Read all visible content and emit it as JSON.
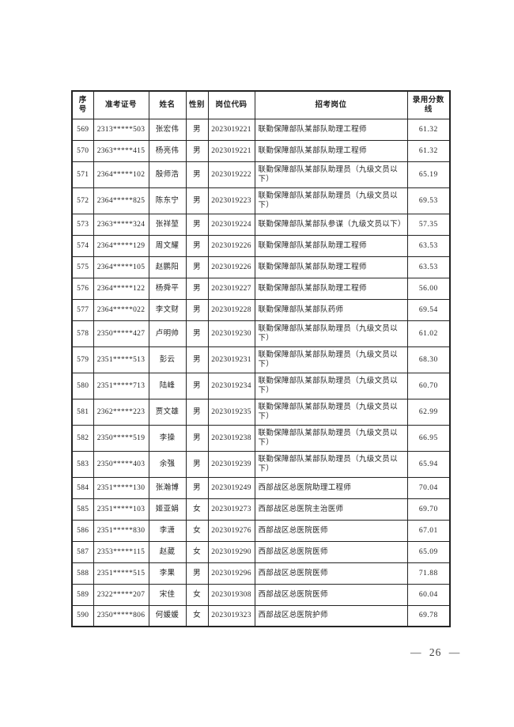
{
  "page": {
    "footer_text": "— 26 —"
  },
  "table": {
    "headers": [
      "序号",
      "准考证号",
      "姓名",
      "性别",
      "岗位代码",
      "招考岗位",
      "录用分数线"
    ],
    "rows": [
      [
        "569",
        "2313*****503",
        "张宏伟",
        "男",
        "2023019221",
        "联勤保障部队某部队助理工程师",
        "61.32"
      ],
      [
        "570",
        "2363*****415",
        "杨亮伟",
        "男",
        "2023019221",
        "联勤保障部队某部队助理工程师",
        "61.32"
      ],
      [
        "571",
        "2364*****102",
        "殷师浩",
        "男",
        "2023019222",
        "联勤保障部队某部队助理员（九级文员以下）",
        "65.19"
      ],
      [
        "572",
        "2364*****825",
        "陈东宁",
        "男",
        "2023019223",
        "联勤保障部队某部队助理员（九级文员以下）",
        "69.53"
      ],
      [
        "573",
        "2363*****324",
        "张祥堃",
        "男",
        "2023019224",
        "联勤保障部队某部队参谋（九级文员以下）",
        "57.35"
      ],
      [
        "574",
        "2364*****129",
        "周文耀",
        "男",
        "2023019226",
        "联勤保障部队某部队助理工程师",
        "63.53"
      ],
      [
        "575",
        "2364*****105",
        "赵鹏阳",
        "男",
        "2023019226",
        "联勤保障部队某部队助理工程师",
        "63.53"
      ],
      [
        "576",
        "2364*****122",
        "杨舜平",
        "男",
        "2023019227",
        "联勤保障部队某部队助理工程师",
        "56.00"
      ],
      [
        "577",
        "2364*****022",
        "李文财",
        "男",
        "2023019228",
        "联勤保障部队某部队药师",
        "69.54"
      ],
      [
        "578",
        "2350*****427",
        "卢明帅",
        "男",
        "2023019230",
        "联勤保障部队某部队助理员（九级文员以下）",
        "61.02"
      ],
      [
        "579",
        "2351*****513",
        "彭云",
        "男",
        "2023019231",
        "联勤保障部队某部队助理员（九级文员以下）",
        "68.30"
      ],
      [
        "580",
        "2351*****713",
        "陆峰",
        "男",
        "2023019234",
        "联勤保障部队某部队助理员（九级文员以下）",
        "60.70"
      ],
      [
        "581",
        "2362*****223",
        "贾文雄",
        "男",
        "2023019235",
        "联勤保障部队某部队助理员（九级文员以下）",
        "62.99"
      ],
      [
        "582",
        "2350*****519",
        "李操",
        "男",
        "2023019238",
        "联勤保障部队某部队助理员（九级文员以下）",
        "66.95"
      ],
      [
        "583",
        "2350*****403",
        "余强",
        "男",
        "2023019239",
        "联勤保障部队某部队助理员（九级文员以下）",
        "65.94"
      ],
      [
        "584",
        "2351*****130",
        "张瀚博",
        "男",
        "2023019249",
        "西部战区总医院助理工程师",
        "70.04"
      ],
      [
        "585",
        "2351*****103",
        "姬亚娟",
        "女",
        "2023019273",
        "西部战区总医院主治医师",
        "69.70"
      ],
      [
        "586",
        "2351*****830",
        "李潇",
        "女",
        "2023019276",
        "西部战区总医院医师",
        "67.01"
      ],
      [
        "587",
        "2353*****115",
        "赵葳",
        "女",
        "2023019290",
        "西部战区总医院医师",
        "65.09"
      ],
      [
        "588",
        "2351*****515",
        "李果",
        "男",
        "2023019296",
        "西部战区总医院医师",
        "71.88"
      ],
      [
        "589",
        "2322*****207",
        "宋佳",
        "女",
        "2023019308",
        "西部战区总医院医师",
        "60.04"
      ],
      [
        "590",
        "2350*****806",
        "何媛媛",
        "女",
        "2023019323",
        "西部战区总医院护师",
        "69.78"
      ]
    ]
  }
}
